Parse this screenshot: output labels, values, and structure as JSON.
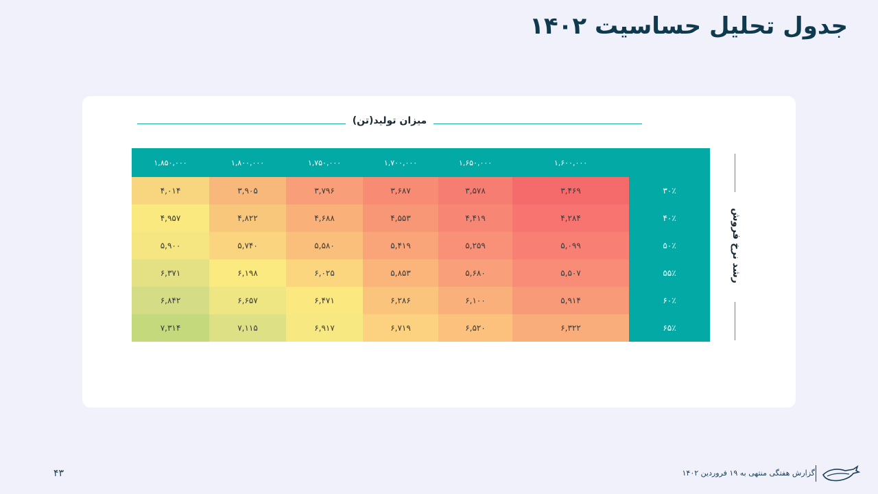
{
  "title": "جدول تحلیل حساسیت ۱۴۰۲",
  "column_group_label": "میزان تولید(تن)",
  "row_group_label": "رشد نرخ فروش",
  "columns": [
    "۱,۸۵۰,۰۰۰",
    "۱,۸۰۰,۰۰۰",
    "۱,۷۵۰,۰۰۰",
    "۱,۷۰۰,۰۰۰",
    "۱,۶۵۰,۰۰۰",
    "۱,۶۰۰,۰۰۰"
  ],
  "rows": [
    {
      "label": "۳۰٪",
      "values": [
        "۴,۰۱۴",
        "۳,۹۰۵",
        "۳,۷۹۶",
        "۳,۶۸۷",
        "۳,۵۷۸",
        "۳,۴۶۹"
      ]
    },
    {
      "label": "۴۰٪",
      "values": [
        "۴,۹۵۷",
        "۴,۸۲۲",
        "۴,۶۸۸",
        "۴,۵۵۳",
        "۴,۴۱۹",
        "۴,۲۸۴"
      ]
    },
    {
      "label": "۵۰٪",
      "values": [
        "۵,۹۰۰",
        "۵,۷۴۰",
        "۵,۵۸۰",
        "۵,۴۱۹",
        "۵,۲۵۹",
        "۵,۰۹۹"
      ]
    },
    {
      "label": "۵۵٪",
      "values": [
        "۶,۳۷۱",
        "۶,۱۹۸",
        "۶,۰۲۵",
        "۵,۸۵۳",
        "۵,۶۸۰",
        "۵,۵۰۷"
      ]
    },
    {
      "label": "۶۰٪",
      "values": [
        "۶,۸۴۲",
        "۶,۶۵۷",
        "۶,۴۷۱",
        "۶,۲۸۶",
        "۶,۱۰۰",
        "۵,۹۱۴"
      ]
    },
    {
      "label": "۶۵٪",
      "values": [
        "۷,۳۱۴",
        "۷,۱۱۵",
        "۶,۹۱۷",
        "۶,۷۱۹",
        "۶,۵۲۰",
        "۶,۳۲۲"
      ]
    }
  ],
  "cell_colors": [
    [
      "#f8d57f",
      "#f9b87b",
      "#f89f79",
      "#f78b74",
      "#f67d72",
      "#f56b6b"
    ],
    [
      "#fae97e",
      "#f9c77c",
      "#f9b079",
      "#f89776",
      "#f88674",
      "#f77470"
    ],
    [
      "#f6e681",
      "#fbd47f",
      "#fbbf7c",
      "#f9a479",
      "#f89177",
      "#f87f73"
    ],
    [
      "#e4e084",
      "#faea80",
      "#fcd57f",
      "#fbb57b",
      "#f99f79",
      "#f88c76"
    ],
    [
      "#d4dc86",
      "#eee682",
      "#fbe980",
      "#fbc47c",
      "#fab07a",
      "#f89a78"
    ],
    [
      "#c4d87c",
      "#dde085",
      "#f7e881",
      "#fcd17f",
      "#fbc17d",
      "#f9ad7a"
    ]
  ],
  "header_color": "#03aaa5",
  "footer": {
    "report_text": "گزارش هفتگی منتهی به ۱۹ فروردین ۱۴۰۲",
    "page_number": "۴۳"
  }
}
